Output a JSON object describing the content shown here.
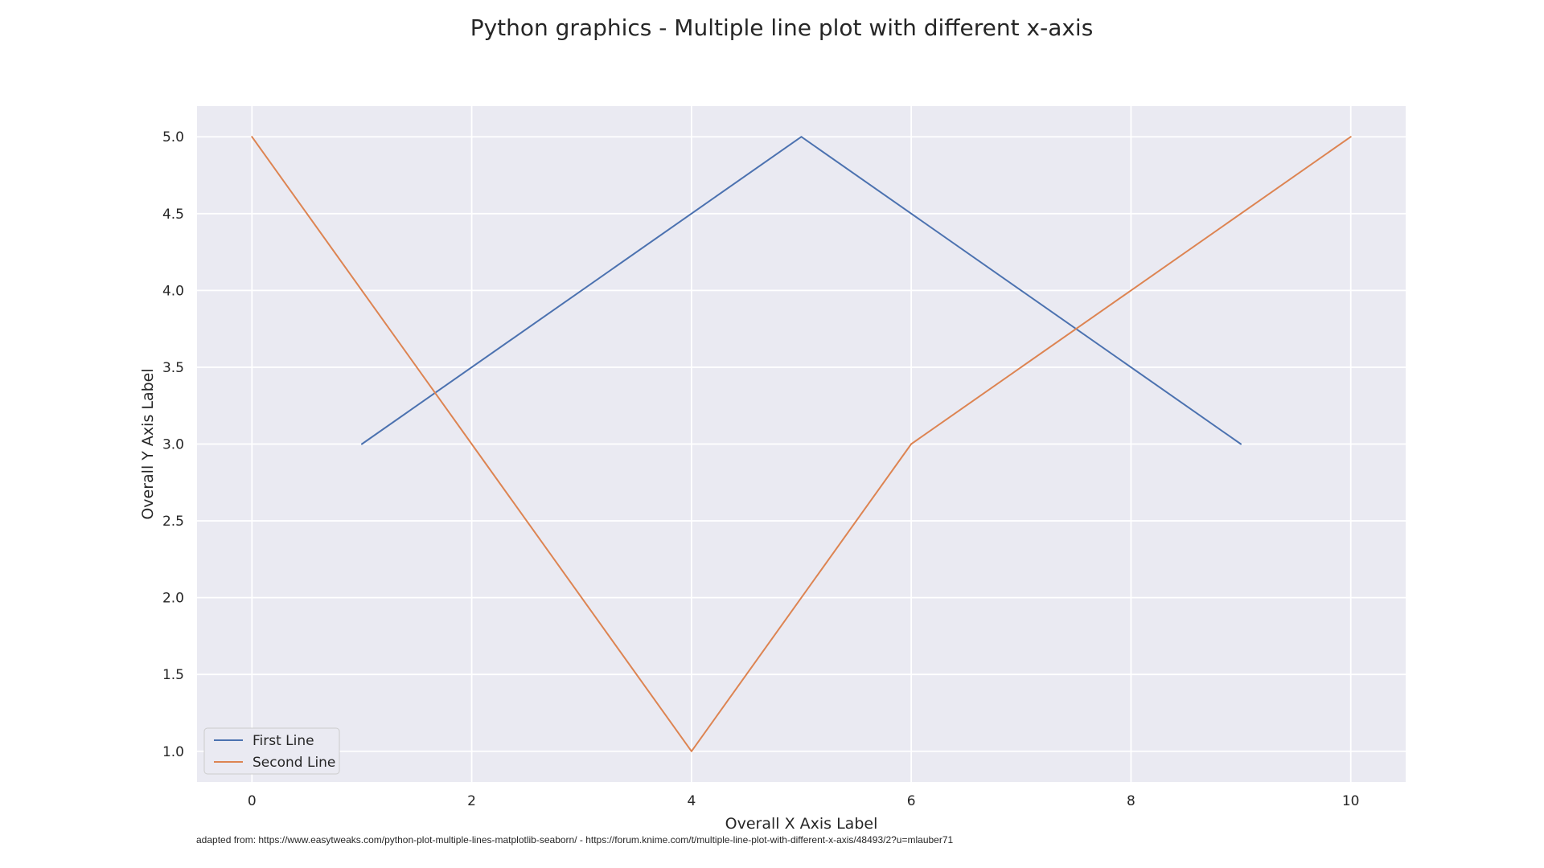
{
  "chart_data": {
    "type": "line",
    "title": "Python graphics - Multiple line plot with different x-axis",
    "xlabel": "Overall X Axis Label",
    "ylabel": "Overall Y Axis Label",
    "xlim": [
      -0.5,
      10.5
    ],
    "ylim": [
      0.8,
      5.2
    ],
    "xticks": [
      0,
      2,
      4,
      6,
      8,
      10
    ],
    "xtick_labels": [
      "0",
      "2",
      "4",
      "6",
      "8",
      "10"
    ],
    "yticks": [
      1.0,
      1.5,
      2.0,
      2.5,
      3.0,
      3.5,
      4.0,
      4.5,
      5.0
    ],
    "ytick_labels": [
      "1.0",
      "1.5",
      "2.0",
      "2.5",
      "3.0",
      "3.5",
      "4.0",
      "4.5",
      "5.0"
    ],
    "grid": true,
    "legend_position": "bottom-left",
    "series": [
      {
        "name": "First Line",
        "color": "#4c72b0",
        "x": [
          1,
          3,
          5,
          7,
          9
        ],
        "y": [
          3,
          4,
          5,
          4,
          3
        ]
      },
      {
        "name": "Second Line",
        "color": "#dd8452",
        "x": [
          0,
          2,
          4,
          6,
          8,
          10
        ],
        "y": [
          5,
          3,
          1,
          3,
          4,
          5
        ]
      }
    ]
  },
  "footnote": "adapted from: https://www.easytweaks.com/python-plot-multiple-lines-matplotlib-seaborn/ - https://forum.knime.com/t/multiple-line-plot-with-different-x-axis/48493/2?u=mlauber71"
}
